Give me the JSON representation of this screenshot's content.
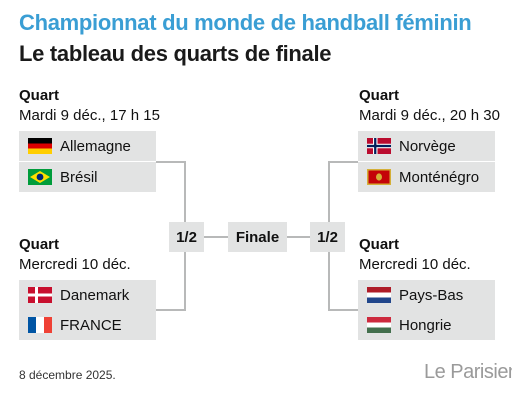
{
  "header": {
    "title": "Championnat du monde de handball féminin",
    "subtitle": "Le tableau des quarts de finale"
  },
  "quarters": {
    "top_left": {
      "label": "Quart",
      "date": "Mardi 9 déc., 17 h 15",
      "teams": [
        "Allemagne",
        "Brésil"
      ]
    },
    "bottom_left": {
      "label": "Quart",
      "date": "Mercredi 10 déc.",
      "teams": [
        "Danemark",
        "FRANCE"
      ]
    },
    "top_right": {
      "label": "Quart",
      "date": "Mardi 9 déc., 20 h 30",
      "teams": [
        "Norvège",
        "Monténégro"
      ]
    },
    "bottom_right": {
      "label": "Quart",
      "date": "Mercredi 10 déc.",
      "teams": [
        "Pays-Bas",
        "Hongrie"
      ]
    }
  },
  "semis": {
    "left": "1/2",
    "right": "1/2"
  },
  "final": {
    "label": "Finale"
  },
  "footer": {
    "date": "8 décembre 2025."
  },
  "logo": {
    "text": "Le Parisien"
  },
  "flags": {
    "germany": "germany-flag",
    "brazil": "brazil-flag",
    "denmark": "denmark-flag",
    "france": "france-flag",
    "norway": "norway-flag",
    "montenegro": "montenegro-flag",
    "netherlands": "netherlands-flag",
    "hungary": "hungary-flag"
  },
  "colors": {
    "title": "#3a9ed4",
    "box_bg": "#e2e3e3",
    "connector": "#b8b9b9"
  }
}
